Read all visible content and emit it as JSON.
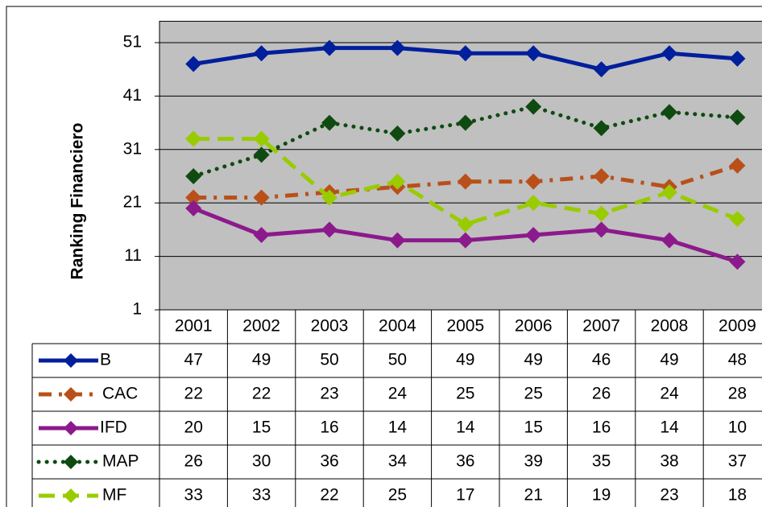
{
  "chart_data": {
    "type": "line",
    "y_label": "Ranking Financiero",
    "categories": [
      "2001",
      "2002",
      "2003",
      "2004",
      "2005",
      "2006",
      "2007",
      "2008",
      "2009"
    ],
    "ylim": [
      1,
      55
    ],
    "yticks": [
      1,
      11,
      21,
      31,
      41,
      51
    ],
    "grid": true,
    "data_table": true,
    "series": [
      {
        "name": "B",
        "color": "#001f9c",
        "line_style": "solid",
        "values": [
          47,
          49,
          50,
          50,
          49,
          49,
          46,
          49,
          48
        ]
      },
      {
        "name": "CAC",
        "color": "#b9501a",
        "line_style": "dash-dot",
        "values": [
          22,
          22,
          23,
          24,
          25,
          25,
          26,
          24,
          28
        ]
      },
      {
        "name": "IFD",
        "color": "#8c1a8c",
        "line_style": "solid",
        "values": [
          20,
          15,
          16,
          14,
          14,
          15,
          16,
          14,
          10
        ]
      },
      {
        "name": "MAP",
        "color": "#0f4a10",
        "line_style": "dotted",
        "values": [
          26,
          30,
          36,
          34,
          36,
          39,
          35,
          38,
          37
        ]
      },
      {
        "name": "MF",
        "color": "#99cc00",
        "line_style": "dashed",
        "values": [
          33,
          33,
          22,
          25,
          17,
          21,
          19,
          23,
          18
        ]
      }
    ]
  }
}
